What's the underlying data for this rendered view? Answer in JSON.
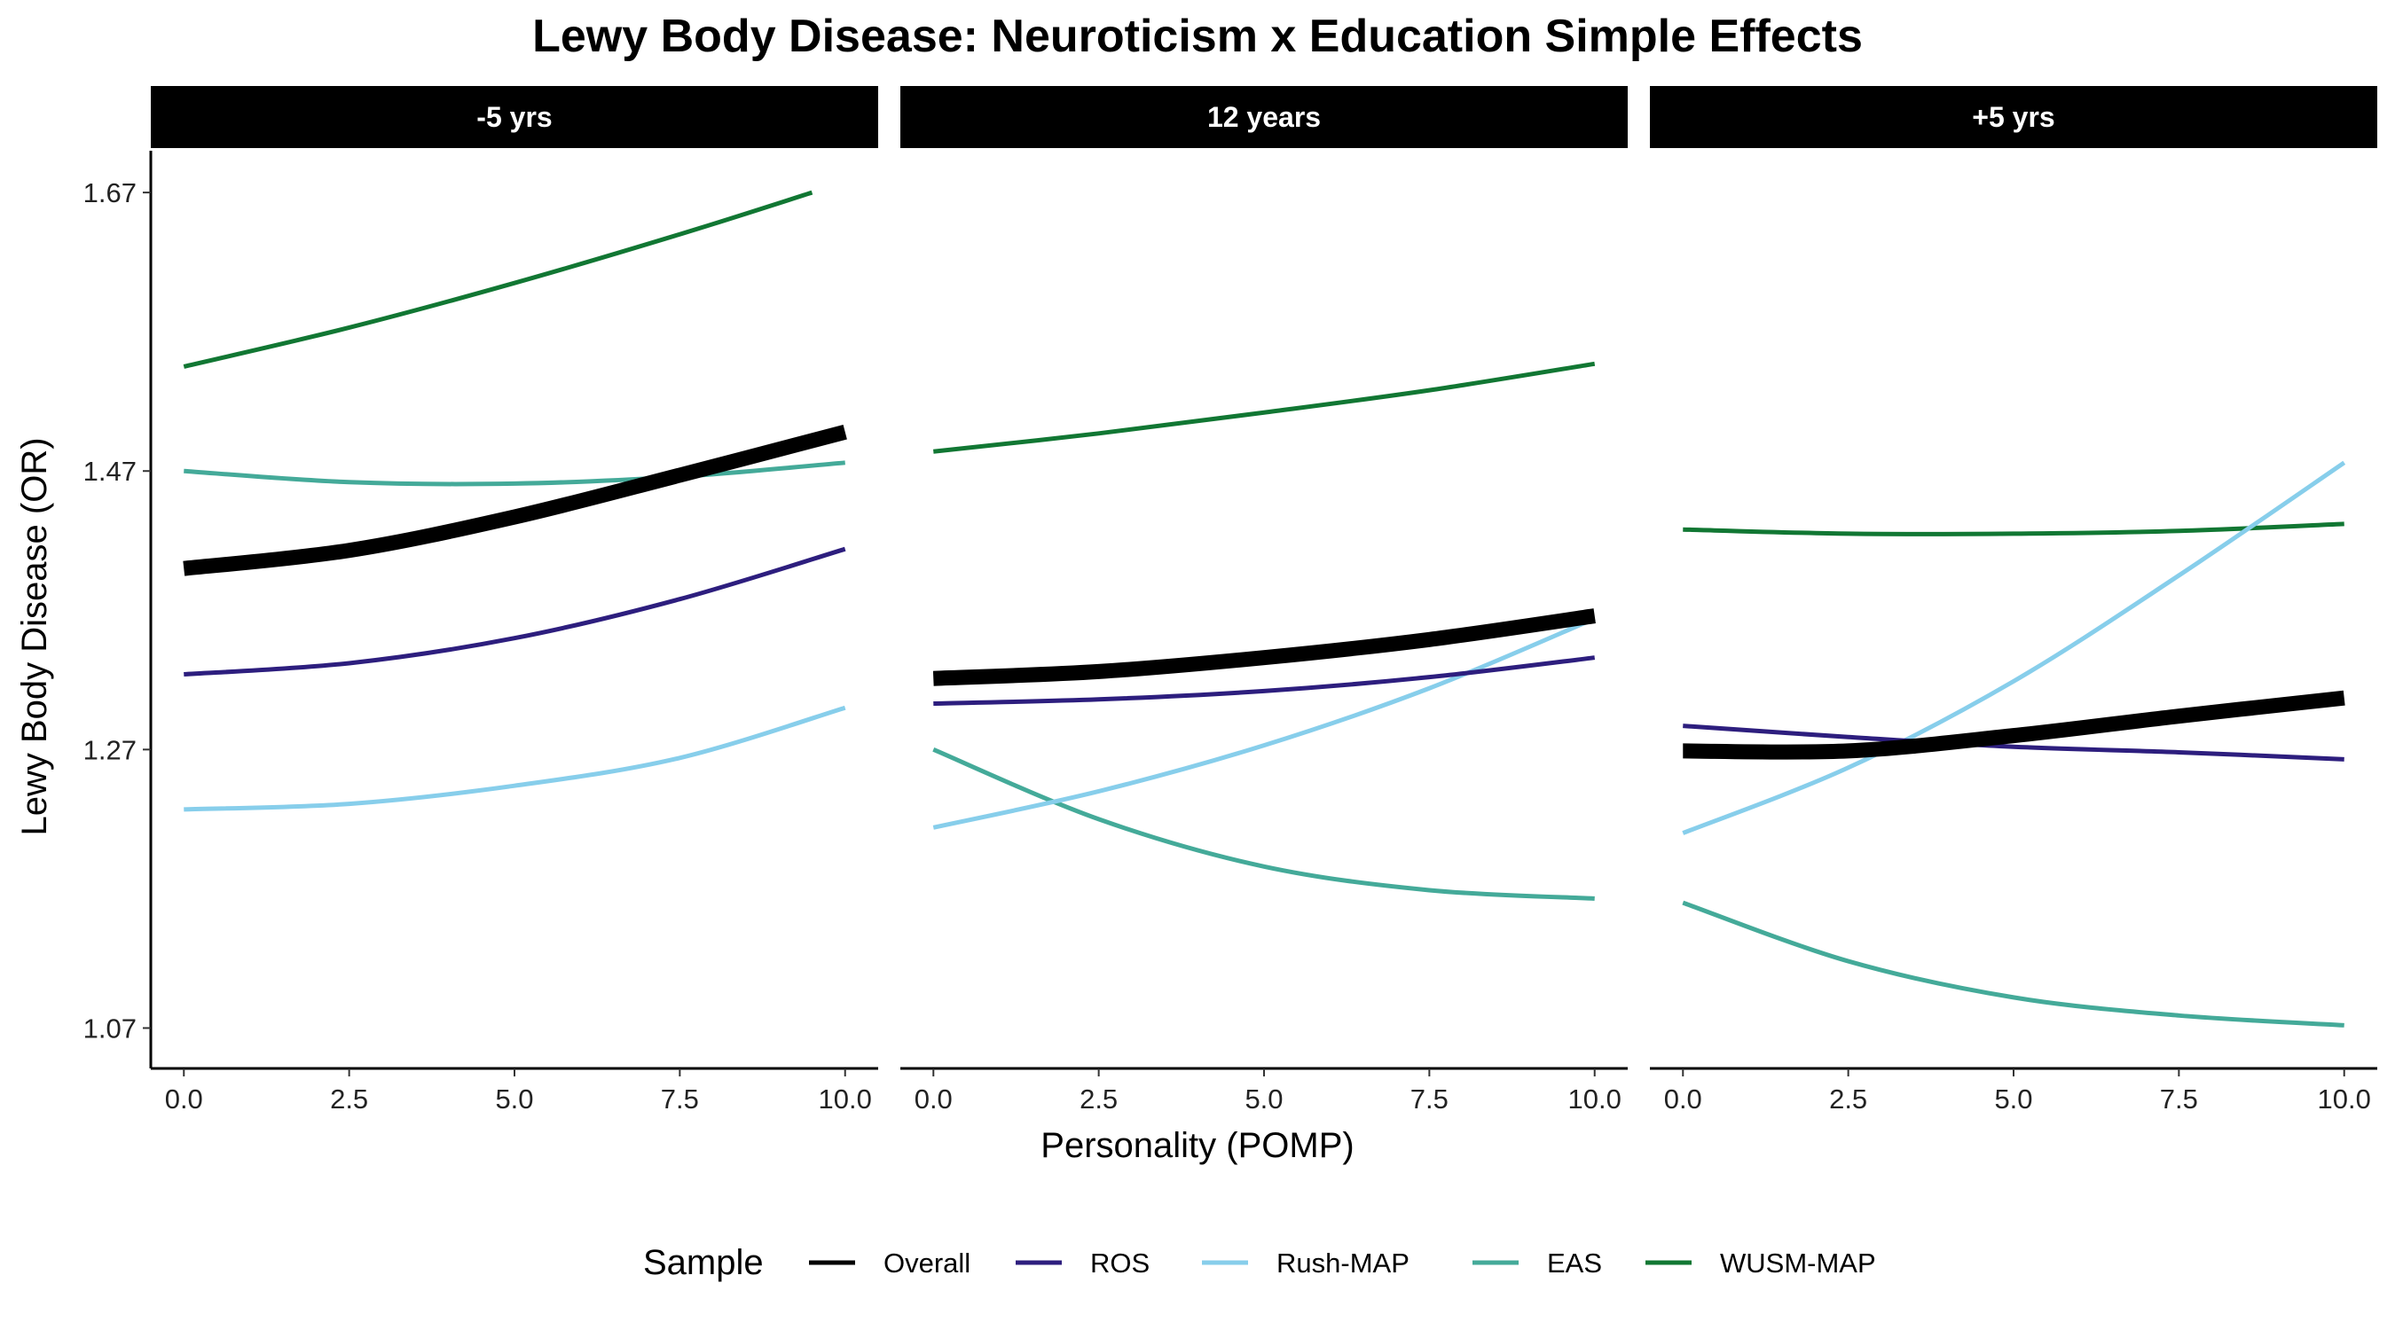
{
  "chart_data": {
    "type": "line",
    "title": "Lewy Body Disease: Neuroticism x Education Simple Effects",
    "xlabel": "Personality (POMP)",
    "ylabel": "Lewy Body Disease (OR)",
    "xlim": [
      -0.5,
      10.5
    ],
    "ylim": [
      1.041,
      1.7
    ],
    "x_ticks": [
      0,
      2.5,
      5,
      7.5,
      10
    ],
    "x_tick_labels": [
      "0.0",
      "2.5",
      "5.0",
      "7.5",
      "10.0"
    ],
    "y_ticks": [
      1.07,
      1.27,
      1.47,
      1.67
    ],
    "y_tick_labels": [
      "1.07",
      "1.27",
      "1.47",
      "1.67"
    ],
    "grid": false,
    "legend": {
      "title": "Sample",
      "position": "bottom",
      "entries": [
        "Overall",
        "ROS",
        "Rush-MAP",
        "EAS",
        "WUSM-MAP"
      ]
    },
    "series_styles": [
      {
        "name": "Overall",
        "color": "#000000",
        "width": "thick"
      },
      {
        "name": "ROS",
        "color": "#2d1e7e",
        "width": "normal"
      },
      {
        "name": "Rush-MAP",
        "color": "#87ceeb",
        "width": "normal"
      },
      {
        "name": "EAS",
        "color": "#44aa99",
        "width": "normal"
      },
      {
        "name": "WUSM-MAP",
        "color": "#117733",
        "width": "normal"
      }
    ],
    "panels": [
      {
        "label": "-5 yrs",
        "x": [
          0,
          2.5,
          5,
          7.5,
          10
        ],
        "series": [
          {
            "name": "WUSM-MAP",
            "x": [
              0,
              2.5,
              5,
              7.5,
              9.5
            ],
            "values": [
              1.545,
              1.573,
              1.605,
              1.64,
              1.67
            ]
          },
          {
            "name": "EAS",
            "values": [
              1.47,
              1.462,
              1.461,
              1.466,
              1.476
            ]
          },
          {
            "name": "Overall",
            "values": [
              1.4,
              1.413,
              1.437,
              1.467,
              1.498
            ]
          },
          {
            "name": "ROS",
            "values": [
              1.324,
              1.332,
              1.35,
              1.378,
              1.414
            ]
          },
          {
            "name": "Rush-MAP",
            "values": [
              1.227,
              1.231,
              1.244,
              1.264,
              1.3
            ]
          }
        ]
      },
      {
        "label": "12 years",
        "x": [
          0,
          2.5,
          5,
          7.5,
          10
        ],
        "series": [
          {
            "name": "WUSM-MAP",
            "values": [
              1.484,
              1.497,
              1.512,
              1.528,
              1.547
            ]
          },
          {
            "name": "EAS",
            "values": [
              1.27,
              1.22,
              1.186,
              1.169,
              1.163
            ]
          },
          {
            "name": "Overall",
            "values": [
              1.321,
              1.326,
              1.336,
              1.349,
              1.366
            ]
          },
          {
            "name": "ROS",
            "values": [
              1.303,
              1.306,
              1.312,
              1.322,
              1.336
            ]
          },
          {
            "name": "Rush-MAP",
            "values": [
              1.214,
              1.24,
              1.273,
              1.314,
              1.364
            ]
          }
        ]
      },
      {
        "label": "+5 yrs",
        "x": [
          0,
          2.5,
          5,
          7.5,
          10
        ],
        "series": [
          {
            "name": "WUSM-MAP",
            "values": [
              1.428,
              1.425,
              1.425,
              1.427,
              1.432
            ]
          },
          {
            "name": "EAS",
            "values": [
              1.16,
              1.118,
              1.092,
              1.079,
              1.072
            ]
          },
          {
            "name": "Overall",
            "values": [
              1.269,
              1.269,
              1.28,
              1.294,
              1.307
            ]
          },
          {
            "name": "ROS",
            "values": [
              1.287,
              1.279,
              1.272,
              1.268,
              1.263
            ]
          },
          {
            "name": "Rush-MAP",
            "values": [
              1.21,
              1.257,
              1.319,
              1.395,
              1.476
            ]
          }
        ]
      }
    ]
  }
}
